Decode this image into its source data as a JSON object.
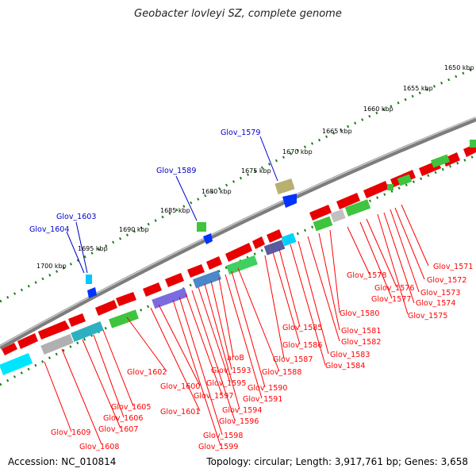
{
  "title": "Geobacter lovleyi SZ, complete genome",
  "footer": {
    "accession": "Accession: NC_010814",
    "topology": "Topology: circular; Length: 3,917,761 bp; Genes: 3,658"
  },
  "ruler_labels": [
    "1650 kbp",
    "1655 kbp",
    "1660 kbp",
    "1665 kbp",
    "1670 kbp",
    "1675 kbp",
    "1680 kbp",
    "1685 kbp",
    "1690 kbp",
    "1695 kbp",
    "1700 kbp"
  ],
  "labels_blue": [
    "Glov_1579",
    "Glov_1589",
    "Glov_1603",
    "Glov_1604"
  ],
  "labels_red": [
    "Glov_1571",
    "Glov_1572",
    "Glov_1573",
    "Glov_1574",
    "Glov_1575",
    "Glov_1576",
    "Glov_1577",
    "Glov_1578",
    "Glov_1580",
    "Glov_1581",
    "Glov_1582",
    "Glov_1583",
    "Glov_1584",
    "Glov_1585",
    "Glov_1586",
    "Glov_1587",
    "Glov_1588",
    "Glov_1590",
    "Glov_1591",
    "aroB",
    "Glov_1593",
    "Glov_1594",
    "Glov_1595",
    "Glov_1596",
    "Glov_1597",
    "Glov_1598",
    "Glov_1599",
    "Glov_1600",
    "Glov_1601",
    "Glov_1602",
    "Glov_1605",
    "Glov_1606",
    "Glov_1607",
    "Glov_1608",
    "Glov_1609"
  ],
  "colors": {
    "backbone": "#808080",
    "forward_gene": "#ff0000",
    "label_red": "#ff0000",
    "label_blue": "#0000cc",
    "tick": "#1a7f1a"
  }
}
